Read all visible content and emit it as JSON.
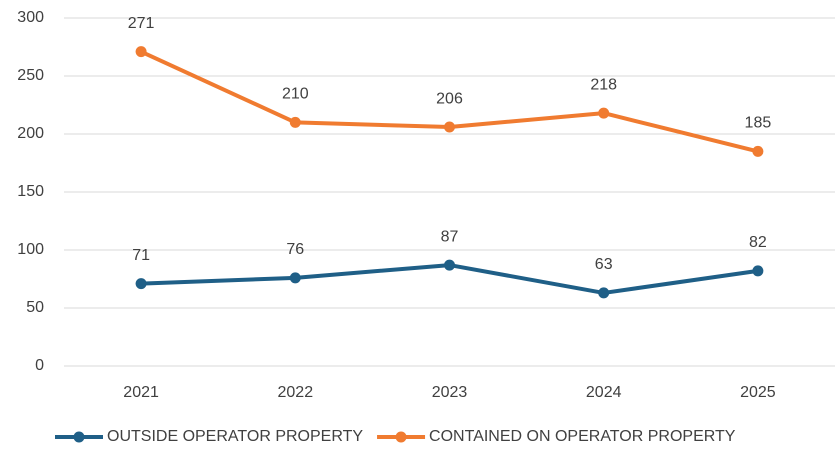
{
  "chart_data": {
    "type": "line",
    "categories": [
      "2021",
      "2022",
      "2023",
      "2024",
      "2025"
    ],
    "series": [
      {
        "name": "OUTSIDE OPERATOR PROPERTY",
        "color": "#1f5f87",
        "values": [
          71,
          76,
          87,
          63,
          82
        ]
      },
      {
        "name": "CONTAINED ON OPERATOR PROPERTY",
        "color": "#f07b30",
        "values": [
          271,
          210,
          206,
          218,
          185
        ]
      }
    ],
    "ylim": [
      0,
      300
    ],
    "yticks": [
      0,
      50,
      100,
      150,
      200,
      250,
      300
    ],
    "grid": true,
    "legend": "bottom",
    "data_labels": true
  }
}
